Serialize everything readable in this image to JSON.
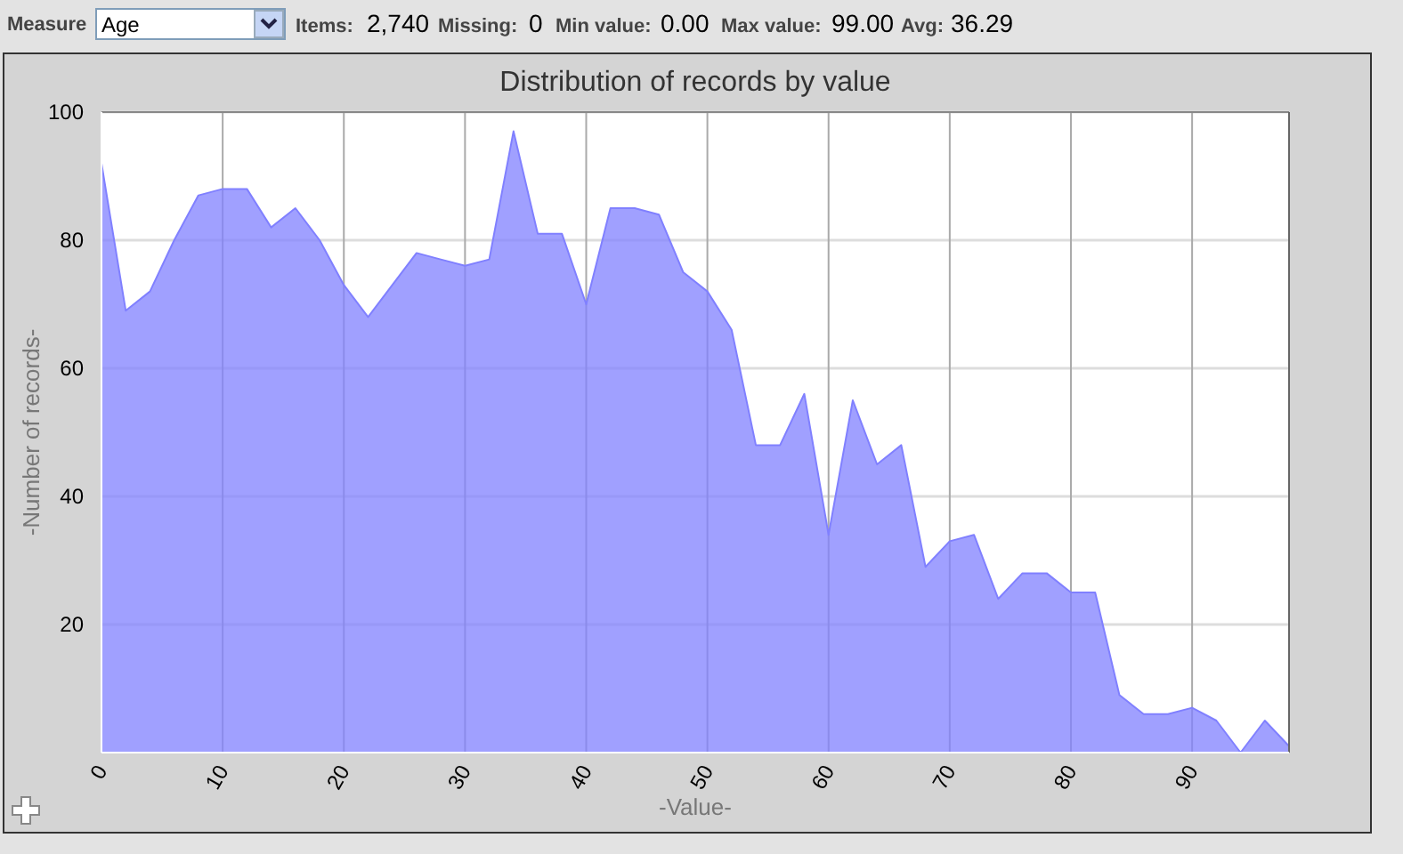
{
  "chart_data": {
    "type": "area",
    "title": "Distribution of records by value",
    "xlabel": "-Value-",
    "ylabel": "-Number of records-",
    "annotations": [
      "Measure",
      "Age",
      "Items:",
      "2,740",
      "Missing:",
      "0",
      "Min value:",
      "0.00",
      "Max value:",
      "99.00",
      "Avg:",
      "36.29"
    ],
    "x": [
      0,
      2,
      4,
      6,
      8,
      10,
      12,
      14,
      16,
      18,
      20,
      22,
      24,
      26,
      28,
      30,
      32,
      34,
      36,
      38,
      40,
      42,
      44,
      46,
      48,
      50,
      52,
      54,
      56,
      58,
      60,
      62,
      64,
      66,
      68,
      70,
      72,
      74,
      76,
      78,
      80,
      82,
      84,
      86,
      88,
      90,
      92,
      94,
      96,
      98
    ],
    "series": [
      {
        "color": "#8080ff",
        "values": [
          92,
          69,
          72,
          80,
          87,
          88,
          88,
          82,
          85,
          80,
          73,
          68,
          73,
          78,
          77,
          76,
          77,
          97,
          81,
          81,
          70,
          85,
          85,
          84,
          75,
          72,
          66,
          48,
          48,
          56,
          34,
          55,
          45,
          48,
          29,
          33,
          34,
          24,
          28,
          28,
          25,
          25,
          9,
          6,
          6,
          7,
          5,
          0,
          5,
          1
        ]
      }
    ],
    "xlim": [
      0,
      98
    ],
    "xticks": [
      0,
      10,
      20,
      30,
      40,
      50,
      60,
      70,
      80,
      90
    ],
    "ylim": [
      0,
      100
    ],
    "yticks": [
      20,
      40,
      60,
      80,
      100
    ],
    "grid": true
  }
}
